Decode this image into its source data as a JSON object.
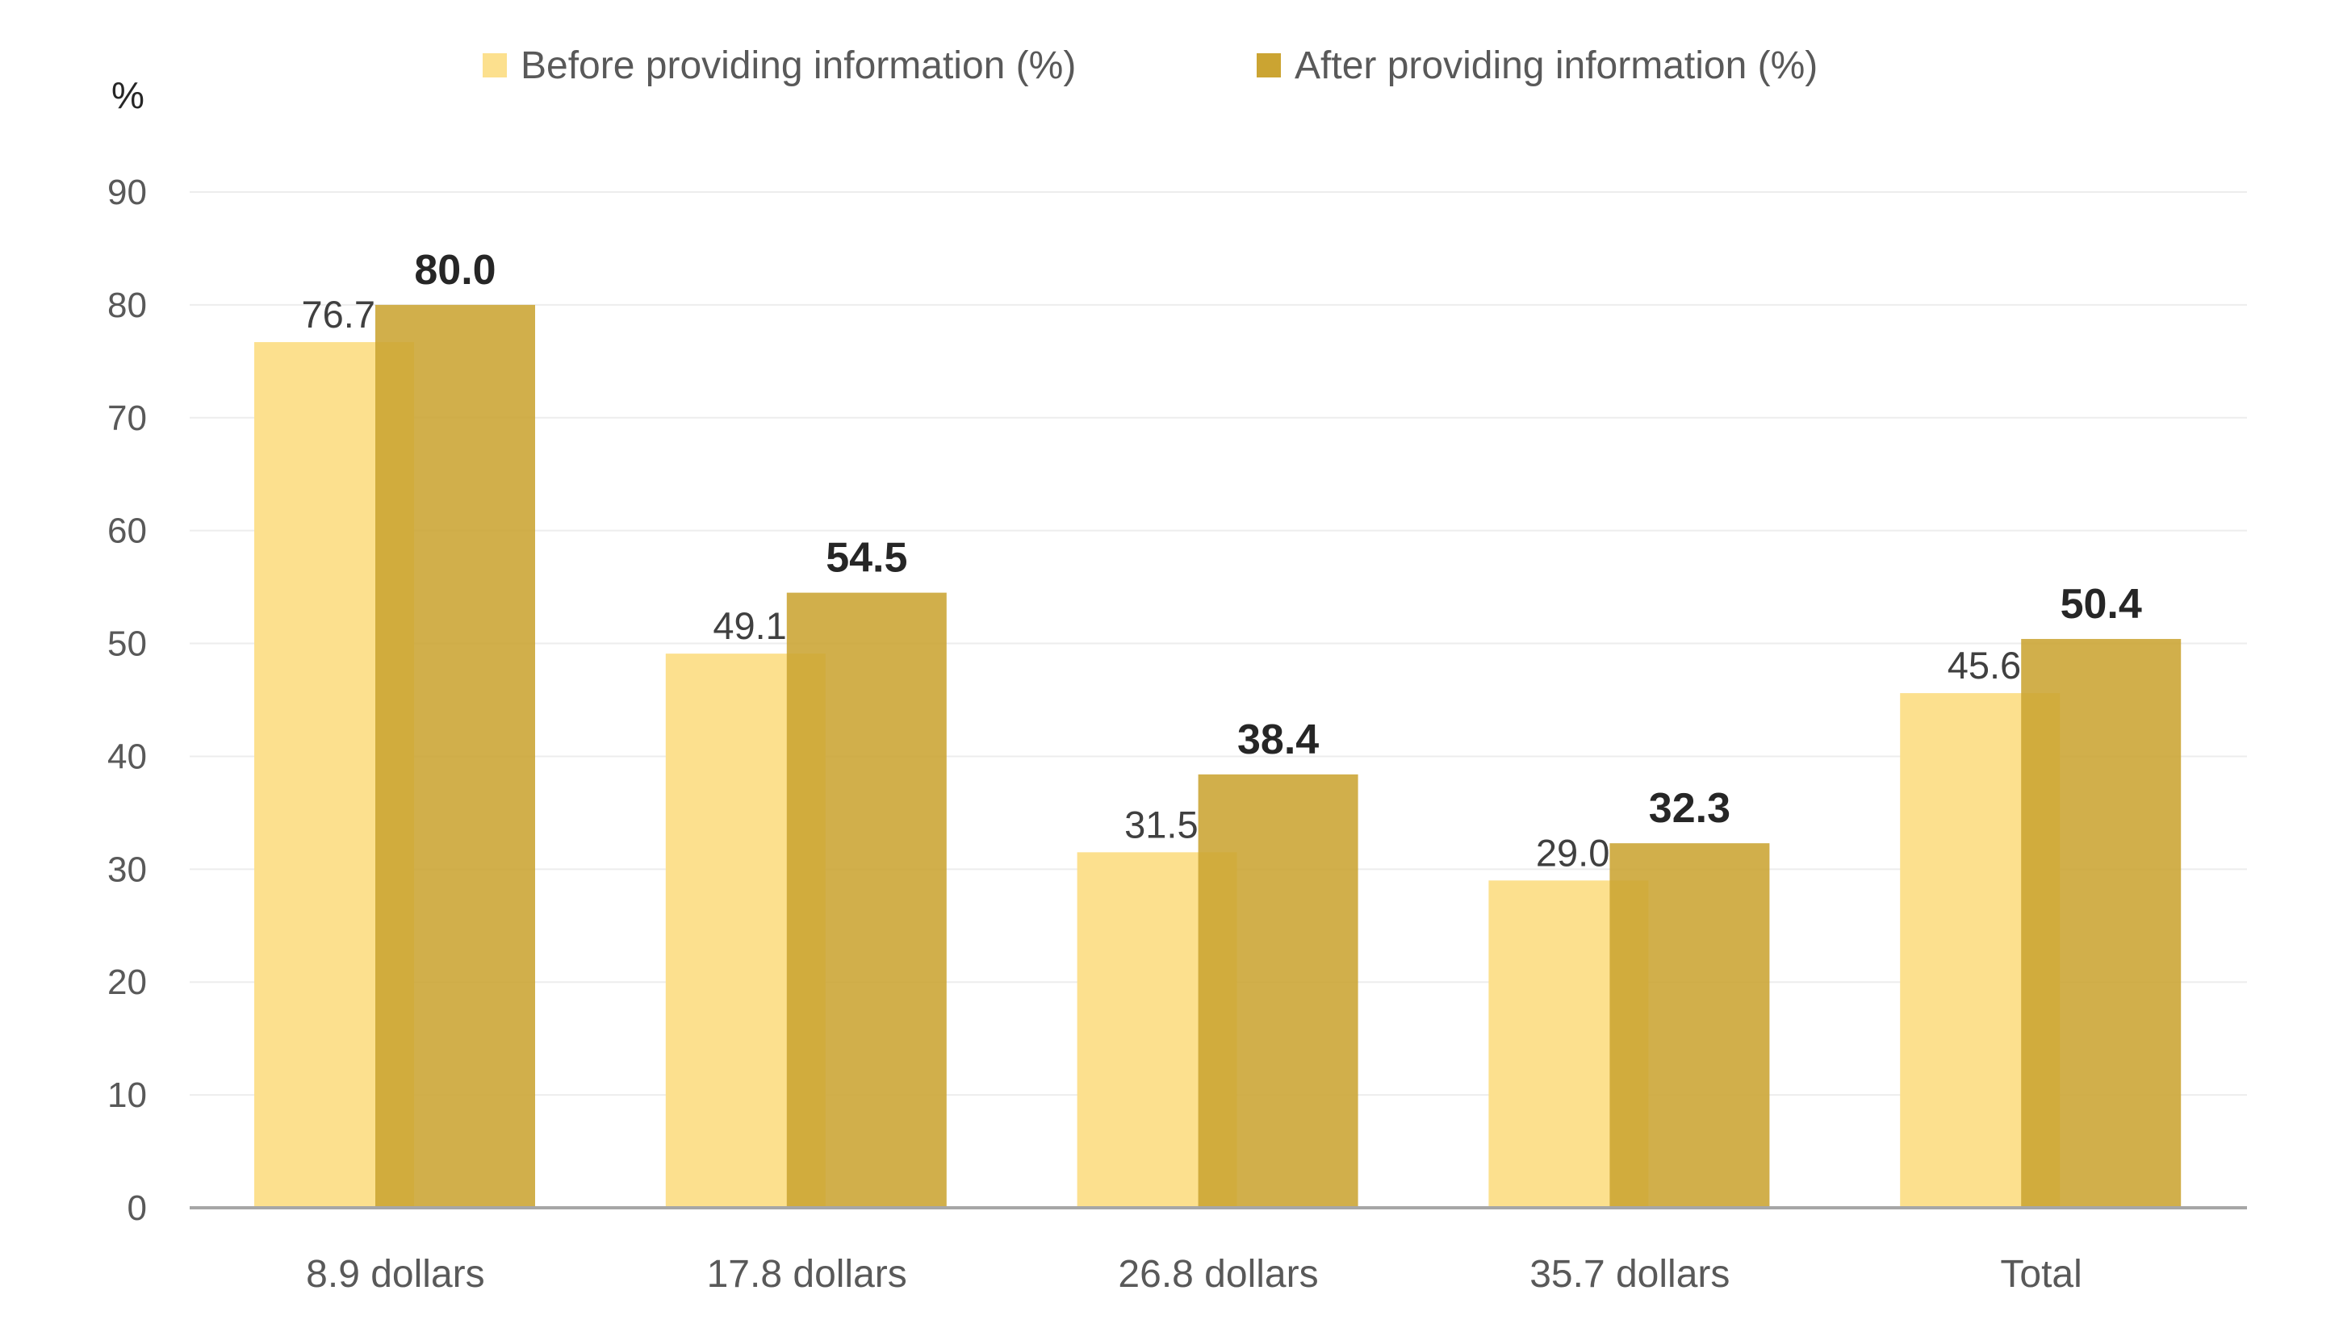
{
  "chart_data": {
    "type": "bar",
    "title": "",
    "xlabel": "",
    "ylabel": "%",
    "ylim": [
      0,
      90
    ],
    "ytick_step": 10,
    "yticks": [
      "0",
      "10",
      "20",
      "30",
      "40",
      "50",
      "60",
      "70",
      "80",
      "90"
    ],
    "grid": true,
    "legend_position": "top-center",
    "categories": [
      "8.9 dollars",
      "17.8 dollars",
      "26.8 dollars",
      "35.7 dollars",
      "Total"
    ],
    "series": [
      {
        "name": "Before providing information (%)",
        "values": [
          76.7,
          49.1,
          31.5,
          29.0,
          45.6
        ],
        "labels": [
          "76.7",
          "49.1",
          "31.5",
          "29.0",
          "45.6"
        ],
        "color": "#FCE08E"
      },
      {
        "name": "After providing information (%)",
        "values": [
          80.0,
          54.5,
          38.4,
          32.3,
          50.4
        ],
        "labels": [
          "80.0",
          "54.5",
          "38.4",
          "32.3",
          "50.4"
        ],
        "color": "#CBA432"
      }
    ]
  }
}
